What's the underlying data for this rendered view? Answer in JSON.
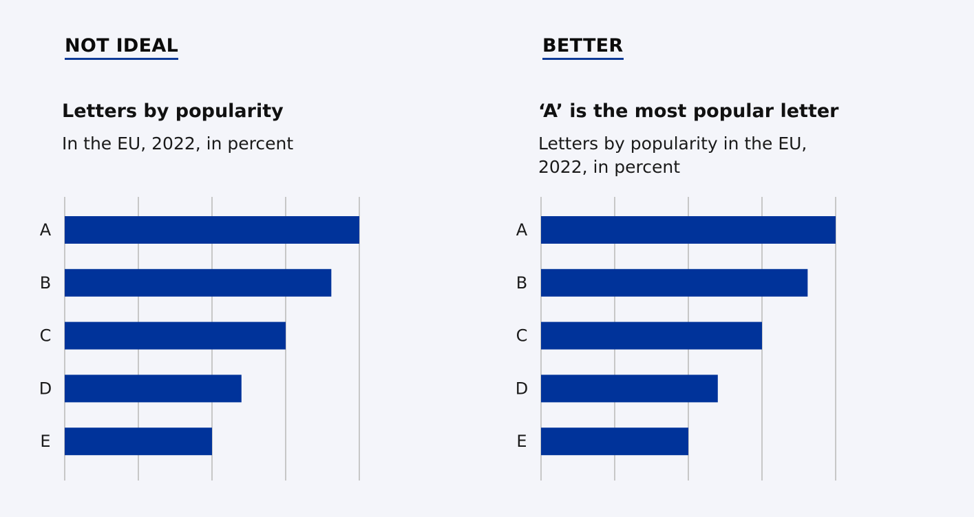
{
  "panels": [
    {
      "verdict": "NOT IDEAL",
      "title": "Letters by popularity",
      "subtitle": "In the EU, 2022, in percent"
    },
    {
      "verdict": "BETTER",
      "title": "‘A’ is the most popular letter",
      "subtitle": "Letters by popularity in the EU, 2022, in percent"
    }
  ],
  "colors": {
    "bar": "#00339a",
    "underline": "#0e3a96",
    "grid": "#c7c7c7",
    "background": "#f4f5fa"
  },
  "chart_data": [
    {
      "type": "bar",
      "orientation": "horizontal",
      "title": "Letters by popularity",
      "subtitle": "In the EU, 2022, in percent",
      "categories": [
        "A",
        "B",
        "C",
        "D",
        "E"
      ],
      "values": [
        100,
        90.5,
        75,
        60,
        50
      ],
      "xlim": [
        0,
        100
      ],
      "gridlines": 5,
      "grid": true,
      "legend": "none"
    },
    {
      "type": "bar",
      "orientation": "horizontal",
      "title": "‘A’ is the most popular letter",
      "subtitle": "Letters by popularity in the EU, 2022, in percent",
      "categories": [
        "A",
        "B",
        "C",
        "D",
        "E"
      ],
      "values": [
        100,
        90.5,
        75,
        60,
        50
      ],
      "xlim": [
        0,
        100
      ],
      "gridlines": 5,
      "grid": true,
      "legend": "none"
    }
  ]
}
